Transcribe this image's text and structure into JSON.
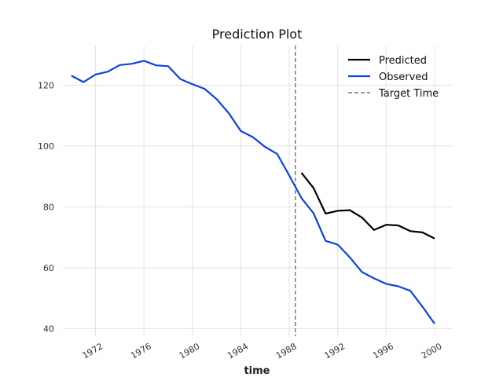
{
  "chart_data": {
    "type": "line",
    "title": "Prediction Plot",
    "xlabel": "time",
    "ylabel": "",
    "xlim": [
      1969.3,
      2001.5
    ],
    "ylim": [
      37.5,
      133
    ],
    "x_ticks": [
      1972,
      1976,
      1980,
      1984,
      1988,
      1992,
      1996,
      2000
    ],
    "y_ticks": [
      40,
      60,
      80,
      100,
      120
    ],
    "grid": true,
    "legend_position": "top-right",
    "target_time": 1988.5,
    "series": [
      {
        "name": "Predicted",
        "color": "#000000",
        "x": [
          1989,
          1990,
          1991,
          1992,
          1993,
          1994,
          1995,
          1996,
          1997,
          1998,
          1999,
          2000
        ],
        "values": [
          91.2,
          86.2,
          77.8,
          78.7,
          78.9,
          76.5,
          72.4,
          74.1,
          73.9,
          72.0,
          71.6,
          69.6
        ]
      },
      {
        "name": "Observed",
        "color": "#0a42e6",
        "x": [
          1970,
          1971,
          1972,
          1973,
          1974,
          1975,
          1976,
          1977,
          1978,
          1979,
          1980,
          1981,
          1982,
          1983,
          1984,
          1985,
          1986,
          1987,
          1988,
          1989,
          1990,
          1991,
          1992,
          1993,
          1994,
          1995,
          1996,
          1997,
          1998,
          1999,
          2000
        ],
        "values": [
          123.1,
          121.0,
          123.5,
          124.4,
          126.6,
          127.0,
          128.0,
          126.5,
          126.2,
          122.0,
          120.3,
          118.8,
          115.4,
          110.8,
          104.9,
          102.9,
          99.7,
          97.4,
          90.3,
          82.9,
          77.9,
          68.8,
          67.6,
          63.4,
          58.6,
          56.5,
          54.7,
          53.9,
          52.4,
          47.2,
          41.6
        ]
      },
      {
        "name": "Target Time",
        "color": "#777777",
        "style": "dashed"
      }
    ]
  }
}
